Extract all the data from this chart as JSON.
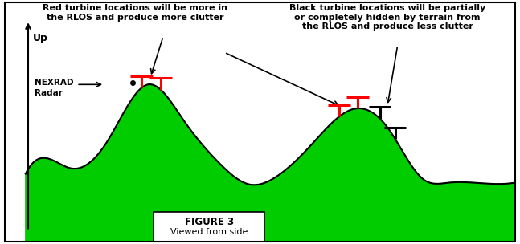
{
  "figure_bg": "#ffffff",
  "terrain_fill": "#00cc00",
  "terrain_edge": "#000000",
  "title_box_text1": "FIGURE 3",
  "title_box_text2": "Viewed from side",
  "annotation_red": "Red turbine locations will be more in\nthe RLOS and produce more clutter",
  "annotation_black": "Black turbine locations will be partially\nor completely hidden by terrain from\nthe RLOS and produce less clutter",
  "nexrad_label": "NEXRAD\nRadar",
  "up_label": "Up",
  "xlim": [
    0,
    10
  ],
  "ylim": [
    -1.2,
    5.5
  ]
}
